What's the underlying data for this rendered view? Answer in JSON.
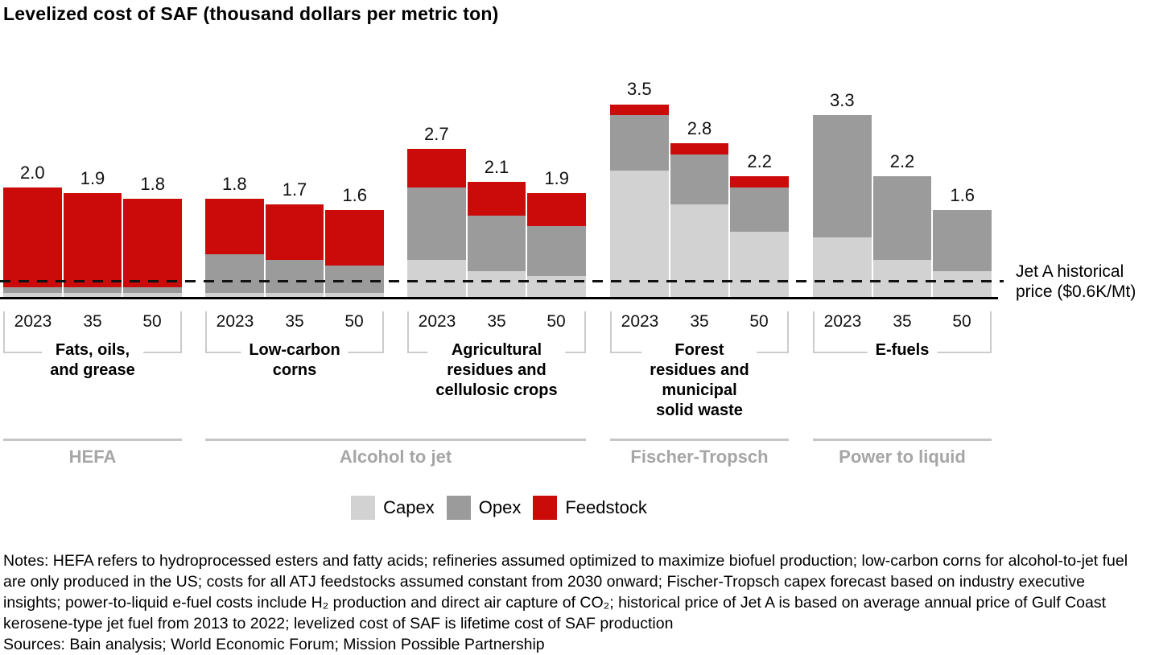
{
  "chart_data": {
    "type": "bar",
    "stacked": true,
    "title": "Levelized cost of SAF (thousand dollars per metric ton)",
    "ylabel": "thousand dollars per metric ton",
    "ylim": [
      0,
      3.7
    ],
    "grid": false,
    "years": [
      "2023",
      "35",
      "50"
    ],
    "series_names": [
      "Capex",
      "Opex",
      "Feedstock"
    ],
    "colors": {
      "capex": "#D2D2D2",
      "opex": "#9B9B9B",
      "feedstock": "#CB0A0A"
    },
    "groups": [
      {
        "label": "Fats, oils,\nand grease",
        "pathway": "HEFA",
        "bars": [
          {
            "year": "2023",
            "total": "2.0",
            "capex": 0.1,
            "opex": 0.1,
            "feedstock": 1.8
          },
          {
            "year": "35",
            "total": "1.9",
            "capex": 0.1,
            "opex": 0.1,
            "feedstock": 1.7
          },
          {
            "year": "50",
            "total": "1.8",
            "capex": 0.1,
            "opex": 0.1,
            "feedstock": 1.6
          }
        ]
      },
      {
        "label": "Low-carbon\ncorns",
        "pathway": "Alcohol to jet",
        "bars": [
          {
            "year": "2023",
            "total": "1.8",
            "capex": 0.1,
            "opex": 0.7,
            "feedstock": 1.0
          },
          {
            "year": "35",
            "total": "1.7",
            "capex": 0.1,
            "opex": 0.6,
            "feedstock": 1.0
          },
          {
            "year": "50",
            "total": "1.6",
            "capex": 0.1,
            "opex": 0.5,
            "feedstock": 1.0
          }
        ]
      },
      {
        "label": "Agricultural\nresidues and\ncellulosic crops",
        "pathway": "Alcohol to jet",
        "bars": [
          {
            "year": "2023",
            "total": "2.7",
            "capex": 0.7,
            "opex": 1.3,
            "feedstock": 0.7
          },
          {
            "year": "35",
            "total": "2.1",
            "capex": 0.5,
            "opex": 1.0,
            "feedstock": 0.6
          },
          {
            "year": "50",
            "total": "1.9",
            "capex": 0.4,
            "opex": 0.9,
            "feedstock": 0.6
          }
        ]
      },
      {
        "label": "Forest\nresidues and\nmunicipal\nsolid waste",
        "pathway": "Fischer-Tropsch",
        "bars": [
          {
            "year": "2023",
            "total": "3.5",
            "capex": 2.3,
            "opex": 1.0,
            "feedstock": 0.2
          },
          {
            "year": "35",
            "total": "2.8",
            "capex": 1.7,
            "opex": 0.9,
            "feedstock": 0.2
          },
          {
            "year": "50",
            "total": "2.2",
            "capex": 1.2,
            "opex": 0.8,
            "feedstock": 0.2
          }
        ]
      },
      {
        "label": "E-fuels",
        "pathway": "Power to liquid",
        "bars": [
          {
            "year": "2023",
            "total": "3.3",
            "capex": 1.1,
            "opex": 2.2,
            "feedstock": 0
          },
          {
            "year": "35",
            "total": "2.2",
            "capex": 0.7,
            "opex": 1.5,
            "feedstock": 0
          },
          {
            "year": "50",
            "total": "1.6",
            "capex": 0.5,
            "opex": 1.1,
            "feedstock": 0
          }
        ]
      }
    ],
    "pathway_spans": [
      {
        "label": "HEFA",
        "groups": [
          0
        ]
      },
      {
        "label": "Alcohol to jet",
        "groups": [
          1,
          2
        ]
      },
      {
        "label": "Fischer-Tropsch",
        "groups": [
          3
        ]
      },
      {
        "label": "Power to liquid",
        "groups": [
          4
        ]
      }
    ],
    "reference_line": {
      "label": "Jet A historical price ($0.6K/Mt)",
      "value": 0.6
    },
    "legend": [
      "Capex",
      "Opex",
      "Feedstock"
    ],
    "legend_position": "bottom-center"
  },
  "footer": {
    "notes": "Notes: HEFA refers to hydroprocessed esters and fatty acids; refineries assumed optimized to maximize biofuel production; low-carbon corns for alcohol-to-jet fuel are only produced in the US; costs for all ATJ feedstocks assumed constant from 2030 onward; Fischer-Tropsch capex forecast based on industry executive insights; power-to-liquid e-fuel costs include H₂ production and direct air capture of CO₂; historical price of Jet A is based on average annual price of Gulf Coast kerosene-type jet fuel from 2013 to 2022; levelized cost of SAF is lifetime cost of SAF production",
    "sources": "Sources: Bain analysis; World Economic Forum; Mission Possible Partnership"
  }
}
